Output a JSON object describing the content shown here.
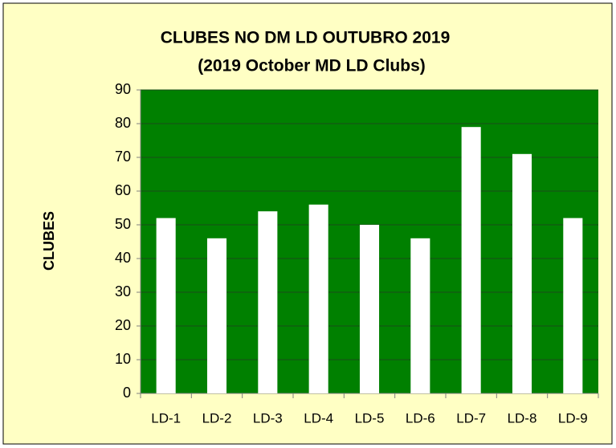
{
  "chart_data": {
    "type": "bar",
    "title": "CLUBES NO DM LD OUTUBRO 2019",
    "subtitle": "(2019  October MD LD Clubs)",
    "y_label": "CLUBES",
    "categories": [
      "LD-1",
      "LD-2",
      "LD-3",
      "LD-4",
      "LD-5",
      "LD-6",
      "LD-7",
      "LD-8",
      "LD-9"
    ],
    "values": [
      52,
      46,
      54,
      56,
      50,
      46,
      79,
      71,
      52
    ],
    "color": "#ffffff",
    "plot_background": "#008000",
    "ylim": [
      0,
      90
    ],
    "yticks": [
      0,
      10,
      20,
      30,
      40,
      50,
      60,
      70,
      80,
      90
    ],
    "grid": true
  }
}
